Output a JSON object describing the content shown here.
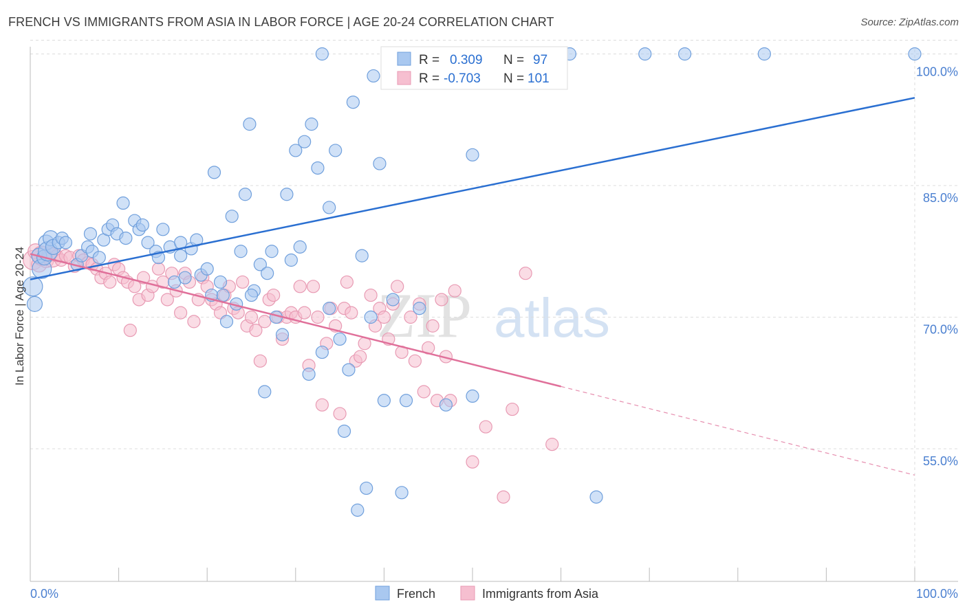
{
  "title": "FRENCH VS IMMIGRANTS FROM ASIA IN LABOR FORCE | AGE 20-24 CORRELATION CHART",
  "source": "Source: ZipAtlas.com",
  "watermark": {
    "zip": "ZIP",
    "atlas": "atlas"
  },
  "colors": {
    "french_fill": "#a9c8f0",
    "french_stroke": "#6f9fdc",
    "french_line": "#2a6fd1",
    "asia_fill": "#f6bfd0",
    "asia_stroke": "#e89ab3",
    "asia_line": "#e0709a",
    "tick_label": "#4a7fd0",
    "grid": "#dcdcdc"
  },
  "chart_data": {
    "type": "scatter",
    "xlabel": "",
    "ylabel": "In Labor Force | Age 20-24",
    "xlim": [
      0,
      100
    ],
    "ylim": [
      40,
      101
    ],
    "x_tick_labels": [
      "0.0%",
      "100.0%"
    ],
    "y_ticks": [
      55,
      70,
      85,
      100
    ],
    "y_tick_labels": [
      "55.0%",
      "70.0%",
      "85.0%",
      "100.0%"
    ],
    "grid": true,
    "legend_top": [
      {
        "r_label": "R =",
        "r": "0.309",
        "n_label": "N =",
        "n": "97"
      },
      {
        "r_label": "R =",
        "r": "-0.703",
        "n_label": "N =",
        "n": "101"
      }
    ],
    "legend_bottom": [
      "French",
      "Immigrants from Asia"
    ],
    "series": [
      {
        "name": "French",
        "trend": {
          "x": [
            0,
            100
          ],
          "y": [
            74.3,
            95.0
          ]
        },
        "points": [
          [
            0.3,
            73.5
          ],
          [
            0.5,
            71.5
          ],
          [
            1.0,
            77.0
          ],
          [
            1.3,
            75.5
          ],
          [
            1.6,
            76.8
          ],
          [
            1.8,
            78.5
          ],
          [
            2.0,
            77.5
          ],
          [
            2.3,
            79.0
          ],
          [
            2.6,
            78.0
          ],
          [
            3.2,
            78.5
          ],
          [
            3.6,
            79.0
          ],
          [
            4.0,
            78.5
          ],
          [
            5.3,
            76.0
          ],
          [
            5.8,
            77.0
          ],
          [
            6.5,
            78.0
          ],
          [
            6.8,
            79.5
          ],
          [
            7.0,
            77.5
          ],
          [
            7.8,
            76.8
          ],
          [
            8.3,
            78.8
          ],
          [
            8.8,
            80.0
          ],
          [
            9.3,
            80.5
          ],
          [
            9.8,
            79.5
          ],
          [
            10.5,
            83.0
          ],
          [
            10.8,
            79.0
          ],
          [
            11.8,
            81.0
          ],
          [
            12.3,
            80.0
          ],
          [
            12.7,
            80.5
          ],
          [
            13.3,
            78.5
          ],
          [
            14.2,
            77.5
          ],
          [
            14.5,
            76.8
          ],
          [
            15.0,
            80.0
          ],
          [
            15.8,
            78.0
          ],
          [
            16.3,
            74.0
          ],
          [
            17.0,
            78.5
          ],
          [
            17.5,
            74.5
          ],
          [
            18.2,
            77.8
          ],
          [
            18.8,
            78.8
          ],
          [
            19.3,
            74.8
          ],
          [
            20.0,
            75.5
          ],
          [
            20.5,
            72.5
          ],
          [
            20.8,
            86.5
          ],
          [
            21.5,
            74.0
          ],
          [
            21.8,
            72.5
          ],
          [
            22.2,
            69.5
          ],
          [
            22.8,
            81.5
          ],
          [
            23.3,
            71.5
          ],
          [
            23.8,
            77.5
          ],
          [
            24.3,
            84.0
          ],
          [
            24.8,
            92.0
          ],
          [
            25.3,
            73.0
          ],
          [
            26.0,
            76.0
          ],
          [
            26.5,
            61.5
          ],
          [
            26.8,
            75.0
          ],
          [
            27.3,
            77.5
          ],
          [
            27.8,
            70.0
          ],
          [
            28.5,
            68.0
          ],
          [
            29.0,
            84.0
          ],
          [
            29.5,
            76.5
          ],
          [
            30.0,
            89.0
          ],
          [
            30.5,
            78.0
          ],
          [
            31.0,
            90.0
          ],
          [
            31.5,
            63.5
          ],
          [
            31.8,
            92.0
          ],
          [
            32.5,
            87.0
          ],
          [
            33.0,
            66.0
          ],
          [
            33.8,
            82.5
          ],
          [
            33.8,
            71.0
          ],
          [
            34.5,
            89.0
          ],
          [
            35.0,
            67.5
          ],
          [
            35.5,
            57.0
          ],
          [
            36.0,
            64.0
          ],
          [
            36.5,
            94.5
          ],
          [
            37.0,
            48.0
          ],
          [
            37.5,
            77.0
          ],
          [
            38.0,
            50.5
          ],
          [
            38.5,
            70.0
          ],
          [
            38.8,
            97.5
          ],
          [
            39.5,
            87.5
          ],
          [
            40.0,
            60.5
          ],
          [
            41.0,
            72.0
          ],
          [
            42.0,
            50.0
          ],
          [
            42.5,
            60.5
          ],
          [
            44.0,
            71.0
          ],
          [
            47.0,
            60.0
          ],
          [
            50.0,
            61.0
          ],
          [
            50.0,
            88.5
          ],
          [
            64.0,
            49.5
          ],
          [
            33.0,
            100.0
          ],
          [
            42.5,
            100.0
          ],
          [
            49.0,
            100.0
          ],
          [
            55.0,
            100.0
          ],
          [
            58.0,
            100.0
          ],
          [
            61.0,
            100.0
          ],
          [
            69.5,
            100.0
          ],
          [
            74.0,
            100.0
          ],
          [
            83.0,
            100.0
          ],
          [
            100.0,
            100.0
          ],
          [
            17.0,
            77.0
          ],
          [
            25.0,
            72.5
          ]
        ]
      },
      {
        "name": "Immigrants from Asia",
        "trend": {
          "x": [
            0,
            60
          ],
          "y": [
            77.2,
            62.1
          ]
        },
        "trend_dashed": {
          "x": [
            60,
            100
          ],
          "y": [
            62.1,
            52.0
          ]
        },
        "points": [
          [
            0.3,
            76.5
          ],
          [
            0.6,
            77.5
          ],
          [
            1.0,
            76.0
          ],
          [
            1.3,
            77.0
          ],
          [
            1.8,
            76.5
          ],
          [
            2.2,
            77.2
          ],
          [
            2.5,
            76.8
          ],
          [
            3.0,
            77.0
          ],
          [
            3.5,
            76.5
          ],
          [
            4.0,
            77.0
          ],
          [
            4.5,
            76.8
          ],
          [
            5.0,
            75.8
          ],
          [
            5.5,
            77.0
          ],
          [
            6.0,
            76.5
          ],
          [
            6.5,
            76.2
          ],
          [
            7.0,
            76.0
          ],
          [
            7.5,
            75.5
          ],
          [
            8.0,
            74.5
          ],
          [
            8.5,
            75.0
          ],
          [
            9.0,
            74.0
          ],
          [
            9.5,
            76.0
          ],
          [
            10.0,
            75.5
          ],
          [
            10.5,
            74.5
          ],
          [
            11.0,
            74.0
          ],
          [
            11.3,
            68.5
          ],
          [
            11.8,
            73.5
          ],
          [
            12.3,
            72.0
          ],
          [
            12.8,
            74.5
          ],
          [
            13.3,
            72.5
          ],
          [
            13.8,
            73.5
          ],
          [
            14.5,
            75.5
          ],
          [
            15.0,
            74.0
          ],
          [
            15.5,
            72.0
          ],
          [
            16.0,
            75.0
          ],
          [
            16.5,
            73.0
          ],
          [
            17.0,
            70.5
          ],
          [
            17.5,
            75.0
          ],
          [
            18.0,
            74.0
          ],
          [
            18.5,
            69.5
          ],
          [
            19.0,
            72.0
          ],
          [
            19.5,
            74.5
          ],
          [
            20.0,
            73.5
          ],
          [
            20.5,
            72.0
          ],
          [
            21.0,
            71.5
          ],
          [
            21.5,
            70.5
          ],
          [
            22.0,
            72.5
          ],
          [
            22.5,
            73.5
          ],
          [
            23.0,
            71.0
          ],
          [
            23.5,
            70.5
          ],
          [
            24.0,
            74.0
          ],
          [
            24.5,
            69.0
          ],
          [
            25.0,
            70.0
          ],
          [
            25.5,
            68.5
          ],
          [
            26.0,
            65.0
          ],
          [
            26.5,
            69.5
          ],
          [
            27.0,
            72.0
          ],
          [
            27.5,
            72.5
          ],
          [
            28.0,
            70.0
          ],
          [
            28.5,
            67.5
          ],
          [
            29.0,
            70.0
          ],
          [
            29.5,
            70.5
          ],
          [
            30.0,
            70.0
          ],
          [
            30.5,
            73.5
          ],
          [
            31.0,
            70.5
          ],
          [
            31.5,
            64.5
          ],
          [
            32.0,
            73.5
          ],
          [
            32.5,
            70.0
          ],
          [
            33.0,
            60.0
          ],
          [
            33.5,
            67.0
          ],
          [
            34.0,
            71.0
          ],
          [
            34.5,
            69.0
          ],
          [
            35.0,
            59.0
          ],
          [
            35.5,
            71.0
          ],
          [
            35.8,
            74.0
          ],
          [
            36.3,
            70.5
          ],
          [
            36.8,
            65.0
          ],
          [
            37.3,
            65.5
          ],
          [
            37.8,
            67.0
          ],
          [
            38.5,
            72.5
          ],
          [
            39.0,
            69.0
          ],
          [
            39.5,
            71.0
          ],
          [
            40.0,
            70.0
          ],
          [
            40.5,
            67.5
          ],
          [
            41.0,
            71.5
          ],
          [
            41.5,
            73.5
          ],
          [
            42.0,
            66.0
          ],
          [
            43.0,
            70.0
          ],
          [
            43.5,
            65.0
          ],
          [
            44.0,
            71.5
          ],
          [
            44.5,
            61.5
          ],
          [
            45.0,
            66.5
          ],
          [
            45.5,
            69.0
          ],
          [
            46.0,
            60.5
          ],
          [
            46.5,
            72.0
          ],
          [
            47.0,
            65.5
          ],
          [
            47.5,
            60.5
          ],
          [
            48.0,
            73.0
          ],
          [
            50.0,
            53.5
          ],
          [
            51.5,
            57.5
          ],
          [
            53.5,
            49.5
          ],
          [
            54.5,
            59.5
          ],
          [
            56.0,
            75.0
          ],
          [
            59.0,
            55.5
          ]
        ]
      }
    ]
  }
}
